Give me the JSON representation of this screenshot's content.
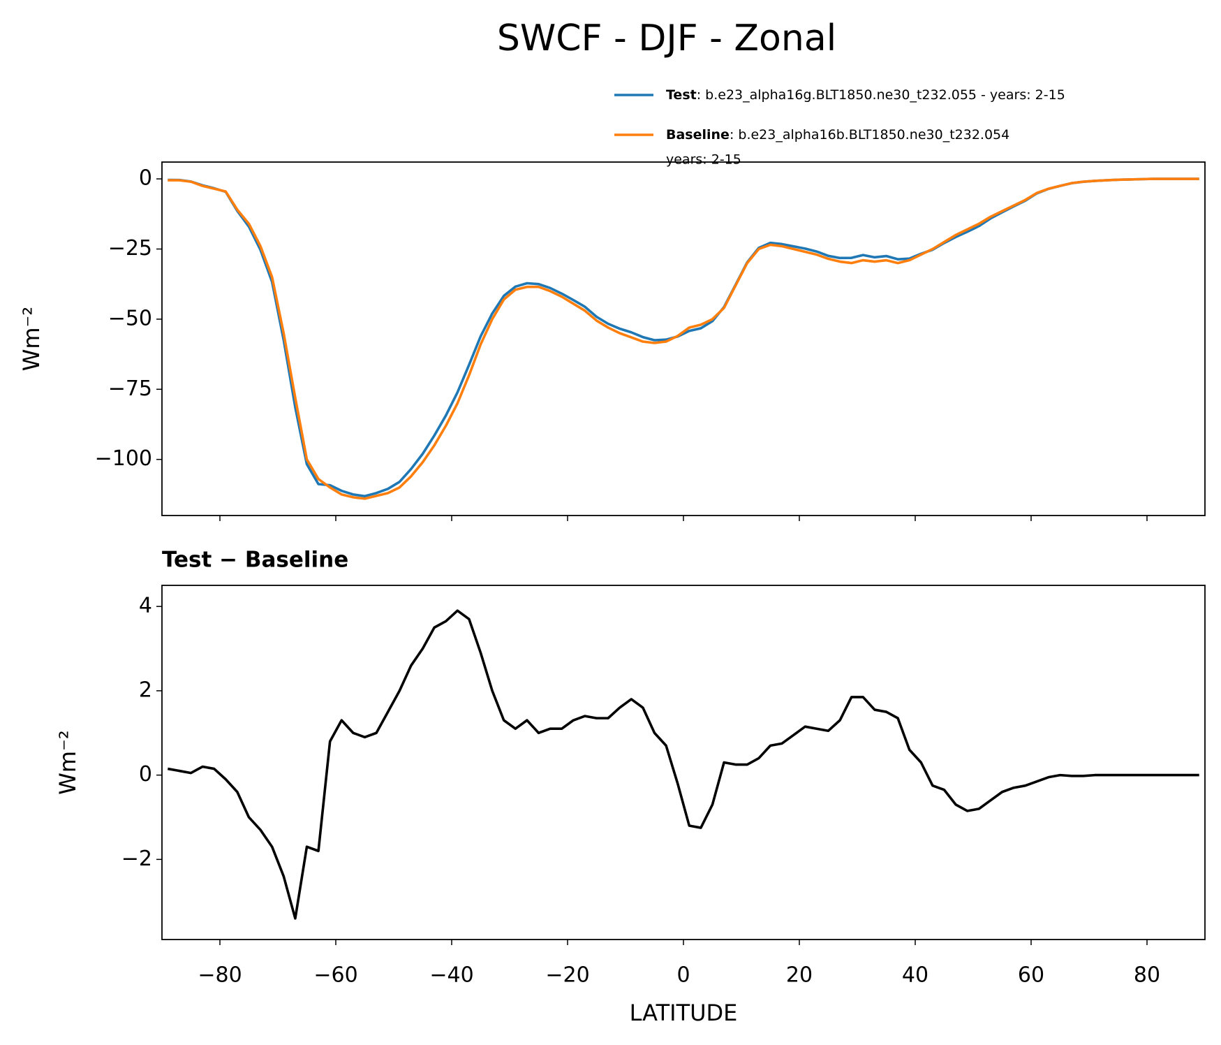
{
  "chart_data": [
    {
      "type": "line",
      "title": "SWCF - DJF - Zonal",
      "ylabel": "Wm⁻²",
      "x": [
        -89,
        -87,
        -85,
        -83,
        -81,
        -79,
        -77,
        -75,
        -73,
        -71,
        -69,
        -67,
        -65,
        -63,
        -61,
        -59,
        -57,
        -55,
        -53,
        -51,
        -49,
        -47,
        -45,
        -43,
        -41,
        -39,
        -37,
        -35,
        -33,
        -31,
        -29,
        -27,
        -25,
        -23,
        -21,
        -19,
        -17,
        -15,
        -13,
        -11,
        -9,
        -7,
        -5,
        -3,
        -1,
        1,
        3,
        5,
        7,
        9,
        11,
        13,
        15,
        17,
        19,
        21,
        23,
        25,
        27,
        29,
        31,
        33,
        35,
        37,
        39,
        41,
        43,
        45,
        47,
        49,
        51,
        53,
        55,
        57,
        59,
        61,
        63,
        65,
        67,
        69,
        71,
        73,
        75,
        77,
        79,
        81,
        83,
        85,
        87,
        89
      ],
      "series": [
        {
          "name": "Test",
          "label_lines": [
            ": b.e23_alpha16g.BLT1850.ne30_t232.055 - years: 2-15"
          ],
          "color": "#1f77b4",
          "values": [
            -0.35,
            -0.4,
            -0.95,
            -2.3,
            -3.35,
            -4.6,
            -11.4,
            -17,
            -25.3,
            -36.7,
            -57.4,
            -81.4,
            -101.7,
            -108.8,
            -109.2,
            -111.2,
            -112.5,
            -113.1,
            -112,
            -110.5,
            -108,
            -103.4,
            -98,
            -91.5,
            -84.35,
            -76.1,
            -66.3,
            -56.1,
            -48,
            -41.7,
            -38.4,
            -37.2,
            -37.5,
            -38.9,
            -40.9,
            -43.2,
            -45.6,
            -49.15,
            -51.65,
            -53.4,
            -54.7,
            -56.4,
            -57.5,
            -57.3,
            -56.2,
            -54.2,
            -53.25,
            -50.7,
            -45.7,
            -37.75,
            -29.75,
            -24.6,
            -22.8,
            -23.25,
            -24.05,
            -24.85,
            -25.9,
            -27.45,
            -28.2,
            -28.15,
            -27.15,
            -27.95,
            -27.5,
            -28.65,
            -28.4,
            -26.7,
            -25.25,
            -22.85,
            -20.7,
            -18.85,
            -16.8,
            -14.1,
            -11.9,
            -9.8,
            -7.75,
            -5.15,
            -3.55,
            -2.5,
            -1.52,
            -1.02,
            -0.7,
            -0.5,
            -0.3,
            -0.2,
            -0.1,
            0,
            0,
            0,
            0,
            0
          ]
        },
        {
          "name": "Baseline",
          "label_lines": [
            ": b.e23_alpha16b.BLT1850.ne30_t232.054",
            "years: 2-15"
          ],
          "color": "#ff7f0e",
          "values": [
            -0.5,
            -0.5,
            -1,
            -2.5,
            -3.5,
            -4.5,
            -11,
            -16,
            -24,
            -35,
            -55,
            -78,
            -100,
            -107,
            -110,
            -112.5,
            -113.5,
            -114,
            -113,
            -112,
            -110,
            -106,
            -101,
            -95,
            -88,
            -80,
            -70,
            -59,
            -50,
            -43,
            -39.5,
            -38.5,
            -38.5,
            -40,
            -42,
            -44.5,
            -47,
            -50.5,
            -53,
            -55,
            -56.5,
            -58,
            -58.5,
            -58,
            -56,
            -53,
            -52,
            -50,
            -46,
            -38,
            -30,
            -25,
            -23.5,
            -24,
            -25,
            -26,
            -27,
            -28.5,
            -29.5,
            -30,
            -29,
            -29.5,
            -29,
            -30,
            -29,
            -27,
            -25,
            -22.5,
            -20,
            -18,
            -16,
            -13.5,
            -11.5,
            -9.5,
            -7.5,
            -5,
            -3.5,
            -2.5,
            -1.5,
            -1,
            -0.7,
            -0.5,
            -0.3,
            -0.2,
            -0.1,
            0,
            0,
            0,
            0,
            0
          ]
        }
      ],
      "xlim": [
        -90,
        90
      ],
      "xticks": [
        -80,
        -60,
        -40,
        -20,
        0,
        20,
        40,
        60,
        80
      ],
      "ylim": [
        -120,
        6
      ],
      "yticks": [
        {
          "value": -100,
          "label": "−100"
        },
        {
          "value": -75,
          "label": "−75"
        },
        {
          "value": -50,
          "label": "−50"
        },
        {
          "value": -25,
          "label": "−25"
        },
        0
      ]
    },
    {
      "type": "line",
      "title": "Test − Baseline",
      "ylabel": "Wm⁻²",
      "xlabel": "LATITUDE",
      "x": [
        -89,
        -87,
        -85,
        -83,
        -81,
        -79,
        -77,
        -75,
        -73,
        -71,
        -69,
        -67,
        -65,
        -63,
        -61,
        -59,
        -57,
        -55,
        -53,
        -51,
        -49,
        -47,
        -45,
        -43,
        -41,
        -39,
        -37,
        -35,
        -33,
        -31,
        -29,
        -27,
        -25,
        -23,
        -21,
        -19,
        -17,
        -15,
        -13,
        -11,
        -9,
        -7,
        -5,
        -3,
        -1,
        1,
        3,
        5,
        7,
        9,
        11,
        13,
        15,
        17,
        19,
        21,
        23,
        25,
        27,
        29,
        31,
        33,
        35,
        37,
        39,
        41,
        43,
        45,
        47,
        49,
        51,
        53,
        55,
        57,
        59,
        61,
        63,
        65,
        67,
        69,
        71,
        73,
        75,
        77,
        79,
        81,
        83,
        85,
        87,
        89
      ],
      "series": [
        {
          "color": "#000000",
          "values": [
            0.15,
            0.1,
            0.05,
            0.2,
            0.15,
            -0.1,
            -0.4,
            -1.0,
            -1.3,
            -1.7,
            -2.4,
            -3.4,
            -1.7,
            -1.8,
            0.8,
            1.3,
            1.0,
            0.9,
            1.0,
            1.5,
            2.0,
            2.6,
            3.0,
            3.5,
            3.65,
            3.9,
            3.7,
            2.9,
            2.0,
            1.3,
            1.1,
            1.3,
            1.0,
            1.1,
            1.1,
            1.3,
            1.4,
            1.35,
            1.35,
            1.6,
            1.8,
            1.6,
            1.0,
            0.7,
            -0.2,
            -1.2,
            -1.25,
            -0.7,
            0.3,
            0.25,
            0.25,
            0.4,
            0.7,
            0.75,
            0.95,
            1.15,
            1.1,
            1.05,
            1.3,
            1.85,
            1.85,
            1.55,
            1.5,
            1.35,
            0.6,
            0.3,
            -0.25,
            -0.35,
            -0.7,
            -0.85,
            -0.8,
            -0.6,
            -0.4,
            -0.3,
            -0.25,
            -0.15,
            -0.05,
            0,
            -0.02,
            -0.02,
            0,
            0,
            0,
            0,
            0,
            0,
            0,
            0,
            0,
            0
          ]
        }
      ],
      "xlim": [
        -90,
        90
      ],
      "xticks": [
        {
          "value": -80,
          "label": "−80"
        },
        {
          "value": -60,
          "label": "−60"
        },
        {
          "value": -40,
          "label": "−40"
        },
        {
          "value": -20,
          "label": "−20"
        },
        0,
        20,
        40,
        60,
        80
      ],
      "ylim": [
        -3.9,
        4.5
      ],
      "yticks": [
        {
          "value": -2,
          "label": "−2"
        },
        0,
        2,
        4
      ]
    }
  ]
}
